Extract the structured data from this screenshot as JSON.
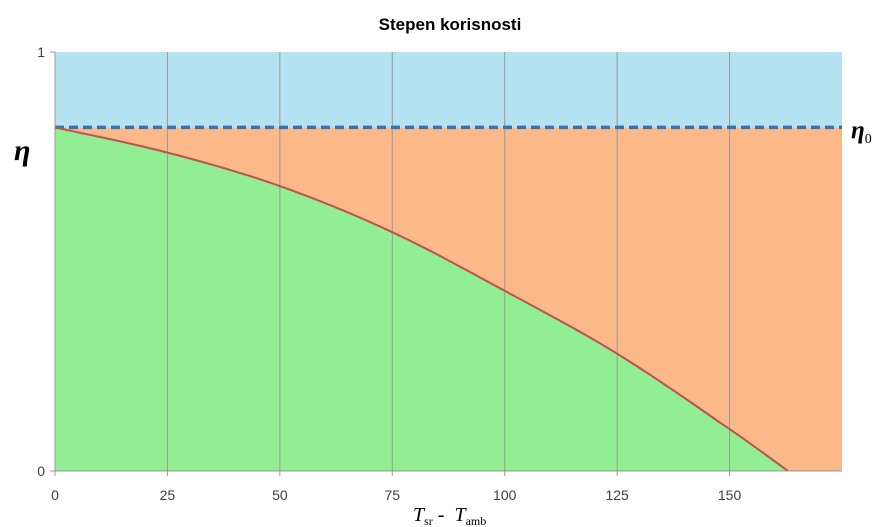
{
  "chart_data": {
    "type": "area",
    "title": "Stepen korisnosti",
    "xlabel": {
      "main": "T",
      "sub": "sr",
      "sep": " -  ",
      "main2": "T",
      "sub2": "amb"
    },
    "ylabel": "η",
    "reference_line": {
      "label": "η",
      "label_sub": "0",
      "value": 0.82,
      "color": "#2e75b6",
      "dashed": true
    },
    "x_ticks": [
      "0",
      "25",
      "50",
      "75",
      "100",
      "125",
      "150"
    ],
    "y_ticks": [
      "0",
      "1"
    ],
    "xlim": [
      0,
      175
    ],
    "ylim": [
      0,
      1
    ],
    "grid": "vertical",
    "efficiency_curve": {
      "x": [
        0,
        25,
        50,
        75,
        100,
        125,
        150,
        163
      ],
      "y": [
        0.82,
        0.76,
        0.68,
        0.57,
        0.43,
        0.28,
        0.1,
        0.0
      ]
    },
    "colors": {
      "above_eta0": "#b4e2f1",
      "losses": "#fbb889",
      "useful": "#92ee92",
      "curve": "#c0504d",
      "grid": "#9a9a9a",
      "axis": "#9a9a9a"
    }
  }
}
